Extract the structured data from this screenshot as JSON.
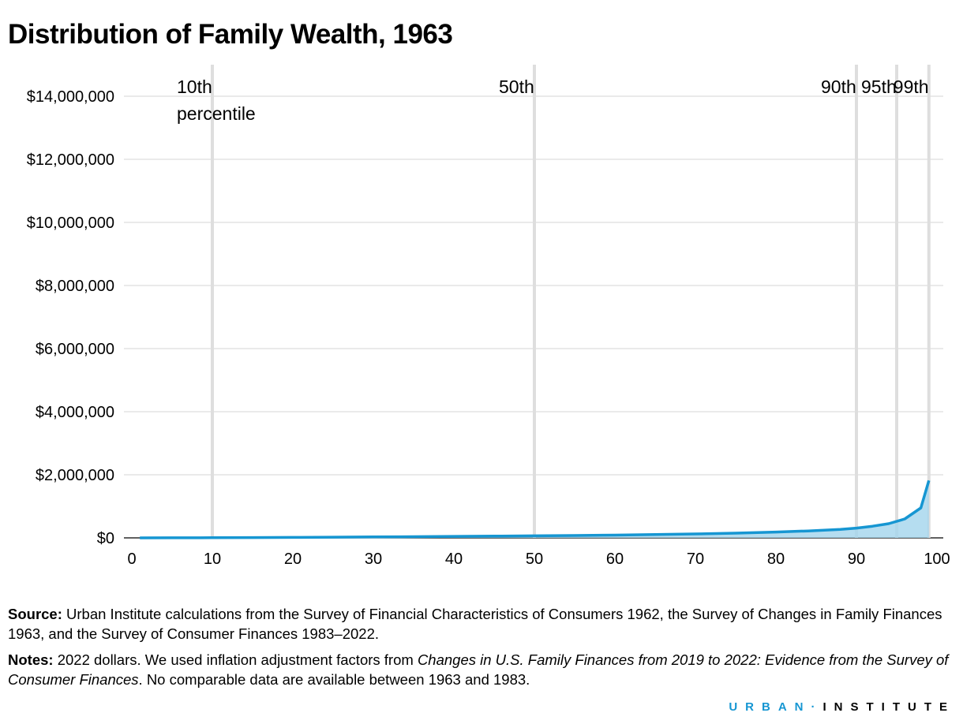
{
  "chart_data": {
    "type": "area-line",
    "title": "Distribution of Family Wealth, 1963",
    "x": [
      1,
      5,
      10,
      15,
      20,
      25,
      30,
      35,
      40,
      45,
      50,
      55,
      60,
      65,
      70,
      75,
      80,
      84,
      86,
      88,
      90,
      92,
      94,
      96,
      98,
      99
    ],
    "series": [
      {
        "color": "#1696d2",
        "values": [
          0,
          2000,
          5000,
          9000,
          15000,
          22000,
          30000,
          38000,
          46000,
          55000,
          65000,
          76000,
          89000,
          105000,
          125000,
          150000,
          185000,
          220000,
          245000,
          270000,
          310000,
          370000,
          450000,
          600000,
          950000,
          1820000
        ]
      }
    ],
    "area_color": "#a2d4ec",
    "xlim": [
      0,
      100
    ],
    "xticks": [
      0,
      10,
      20,
      30,
      40,
      50,
      60,
      70,
      80,
      90,
      100
    ],
    "ylim": [
      0,
      15000000
    ],
    "yticks": [
      {
        "value": 0,
        "label": "$0"
      },
      {
        "value": 2000000,
        "label": "$2,000,000"
      },
      {
        "value": 4000000,
        "label": "$4,000,000"
      },
      {
        "value": 6000000,
        "label": "$6,000,000"
      },
      {
        "value": 8000000,
        "label": "$8,000,000"
      },
      {
        "value": 10000000,
        "label": "$10,000,000"
      },
      {
        "value": 12000000,
        "label": "$12,000,000"
      },
      {
        "value": 14000000,
        "label": "$14,000,000"
      }
    ],
    "grid": true,
    "annotations": [
      {
        "x": 10,
        "label": "10th percentile"
      },
      {
        "x": 50,
        "label": "50th"
      },
      {
        "x": 90,
        "label": "90th"
      },
      {
        "x": 95,
        "label": "95th"
      },
      {
        "x": 99,
        "label": "99th"
      }
    ]
  },
  "footer": {
    "source_label": "Source:",
    "source_text": "Urban Institute calculations from the Survey of Financial Characteristics of Consumers 1962, the Survey of Changes in Family Finances 1963, and the Survey of Consumer Finances 1983–2022.",
    "notes_label": "Notes:",
    "notes_parts": [
      "2022 dollars. We used inflation adjustment factors from ",
      "Changes in U.S. Family Finances from 2019 to 2022: Evidence from the Survey of Consumer Finances",
      ". No comparable data are available between 1963 and 1983."
    ],
    "logo_left": "URBAN",
    "logo_right": "INSTITUTE"
  }
}
